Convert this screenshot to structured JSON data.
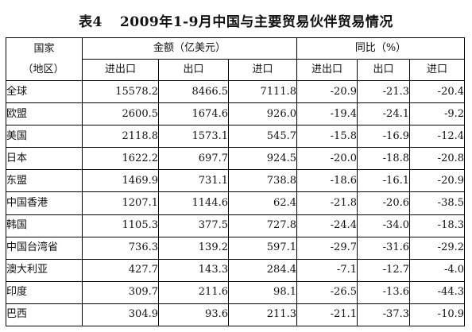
{
  "title": {
    "label": "表4",
    "text": "2009年1-9月中国与主要贸易伙伴贸易情况"
  },
  "header": {
    "region": "国家",
    "region_sub": "（地区）",
    "amount": "金额（亿美元）",
    "yoy": "同比（%）",
    "sub": [
      "进出口",
      "出口",
      "进口",
      "进出口",
      "出口",
      "进口"
    ]
  },
  "rows": [
    {
      "name": "全球",
      "cells": [
        "15578.2",
        "8466.5",
        "7111.8",
        "-20.9",
        "-21.3",
        "-20.4"
      ]
    },
    {
      "name": "欧盟",
      "cells": [
        "2600.5",
        "1674.6",
        "926.0",
        "-19.4",
        "-24.1",
        "-9.2"
      ]
    },
    {
      "name": "美国",
      "cells": [
        "2118.8",
        "1573.1",
        "545.7",
        "-15.8",
        "-16.9",
        "-12.4"
      ]
    },
    {
      "name": "日本",
      "cells": [
        "1622.2",
        "697.7",
        "924.5",
        "-20.0",
        "-18.8",
        "-20.8"
      ]
    },
    {
      "name": "东盟",
      "cells": [
        "1469.9",
        "731.1",
        "738.8",
        "-18.6",
        "-16.1",
        "-20.9"
      ]
    },
    {
      "name": "中国香港",
      "cells": [
        "1207.1",
        "1144.6",
        "62.4",
        "-21.8",
        "-20.6",
        "-38.5"
      ]
    },
    {
      "name": "韩国",
      "cells": [
        "1105.3",
        "377.5",
        "727.8",
        "-24.4",
        "-34.0",
        "-18.3"
      ]
    },
    {
      "name": "中国台湾省",
      "cells": [
        "736.3",
        "139.2",
        "597.1",
        "-29.7",
        "-31.6",
        "-29.2"
      ]
    },
    {
      "name": "澳大利亚",
      "cells": [
        "427.7",
        "143.3",
        "284.4",
        "-7.1",
        "-12.7",
        "-4.0"
      ]
    },
    {
      "name": "印度",
      "cells": [
        "309.7",
        "211.6",
        "98.1",
        "-26.5",
        "-13.6",
        "-44.3"
      ]
    },
    {
      "name": "巴西",
      "cells": [
        "304.9",
        "93.6",
        "211.3",
        "-21.1",
        "-37.3",
        "-10.9"
      ]
    }
  ]
}
